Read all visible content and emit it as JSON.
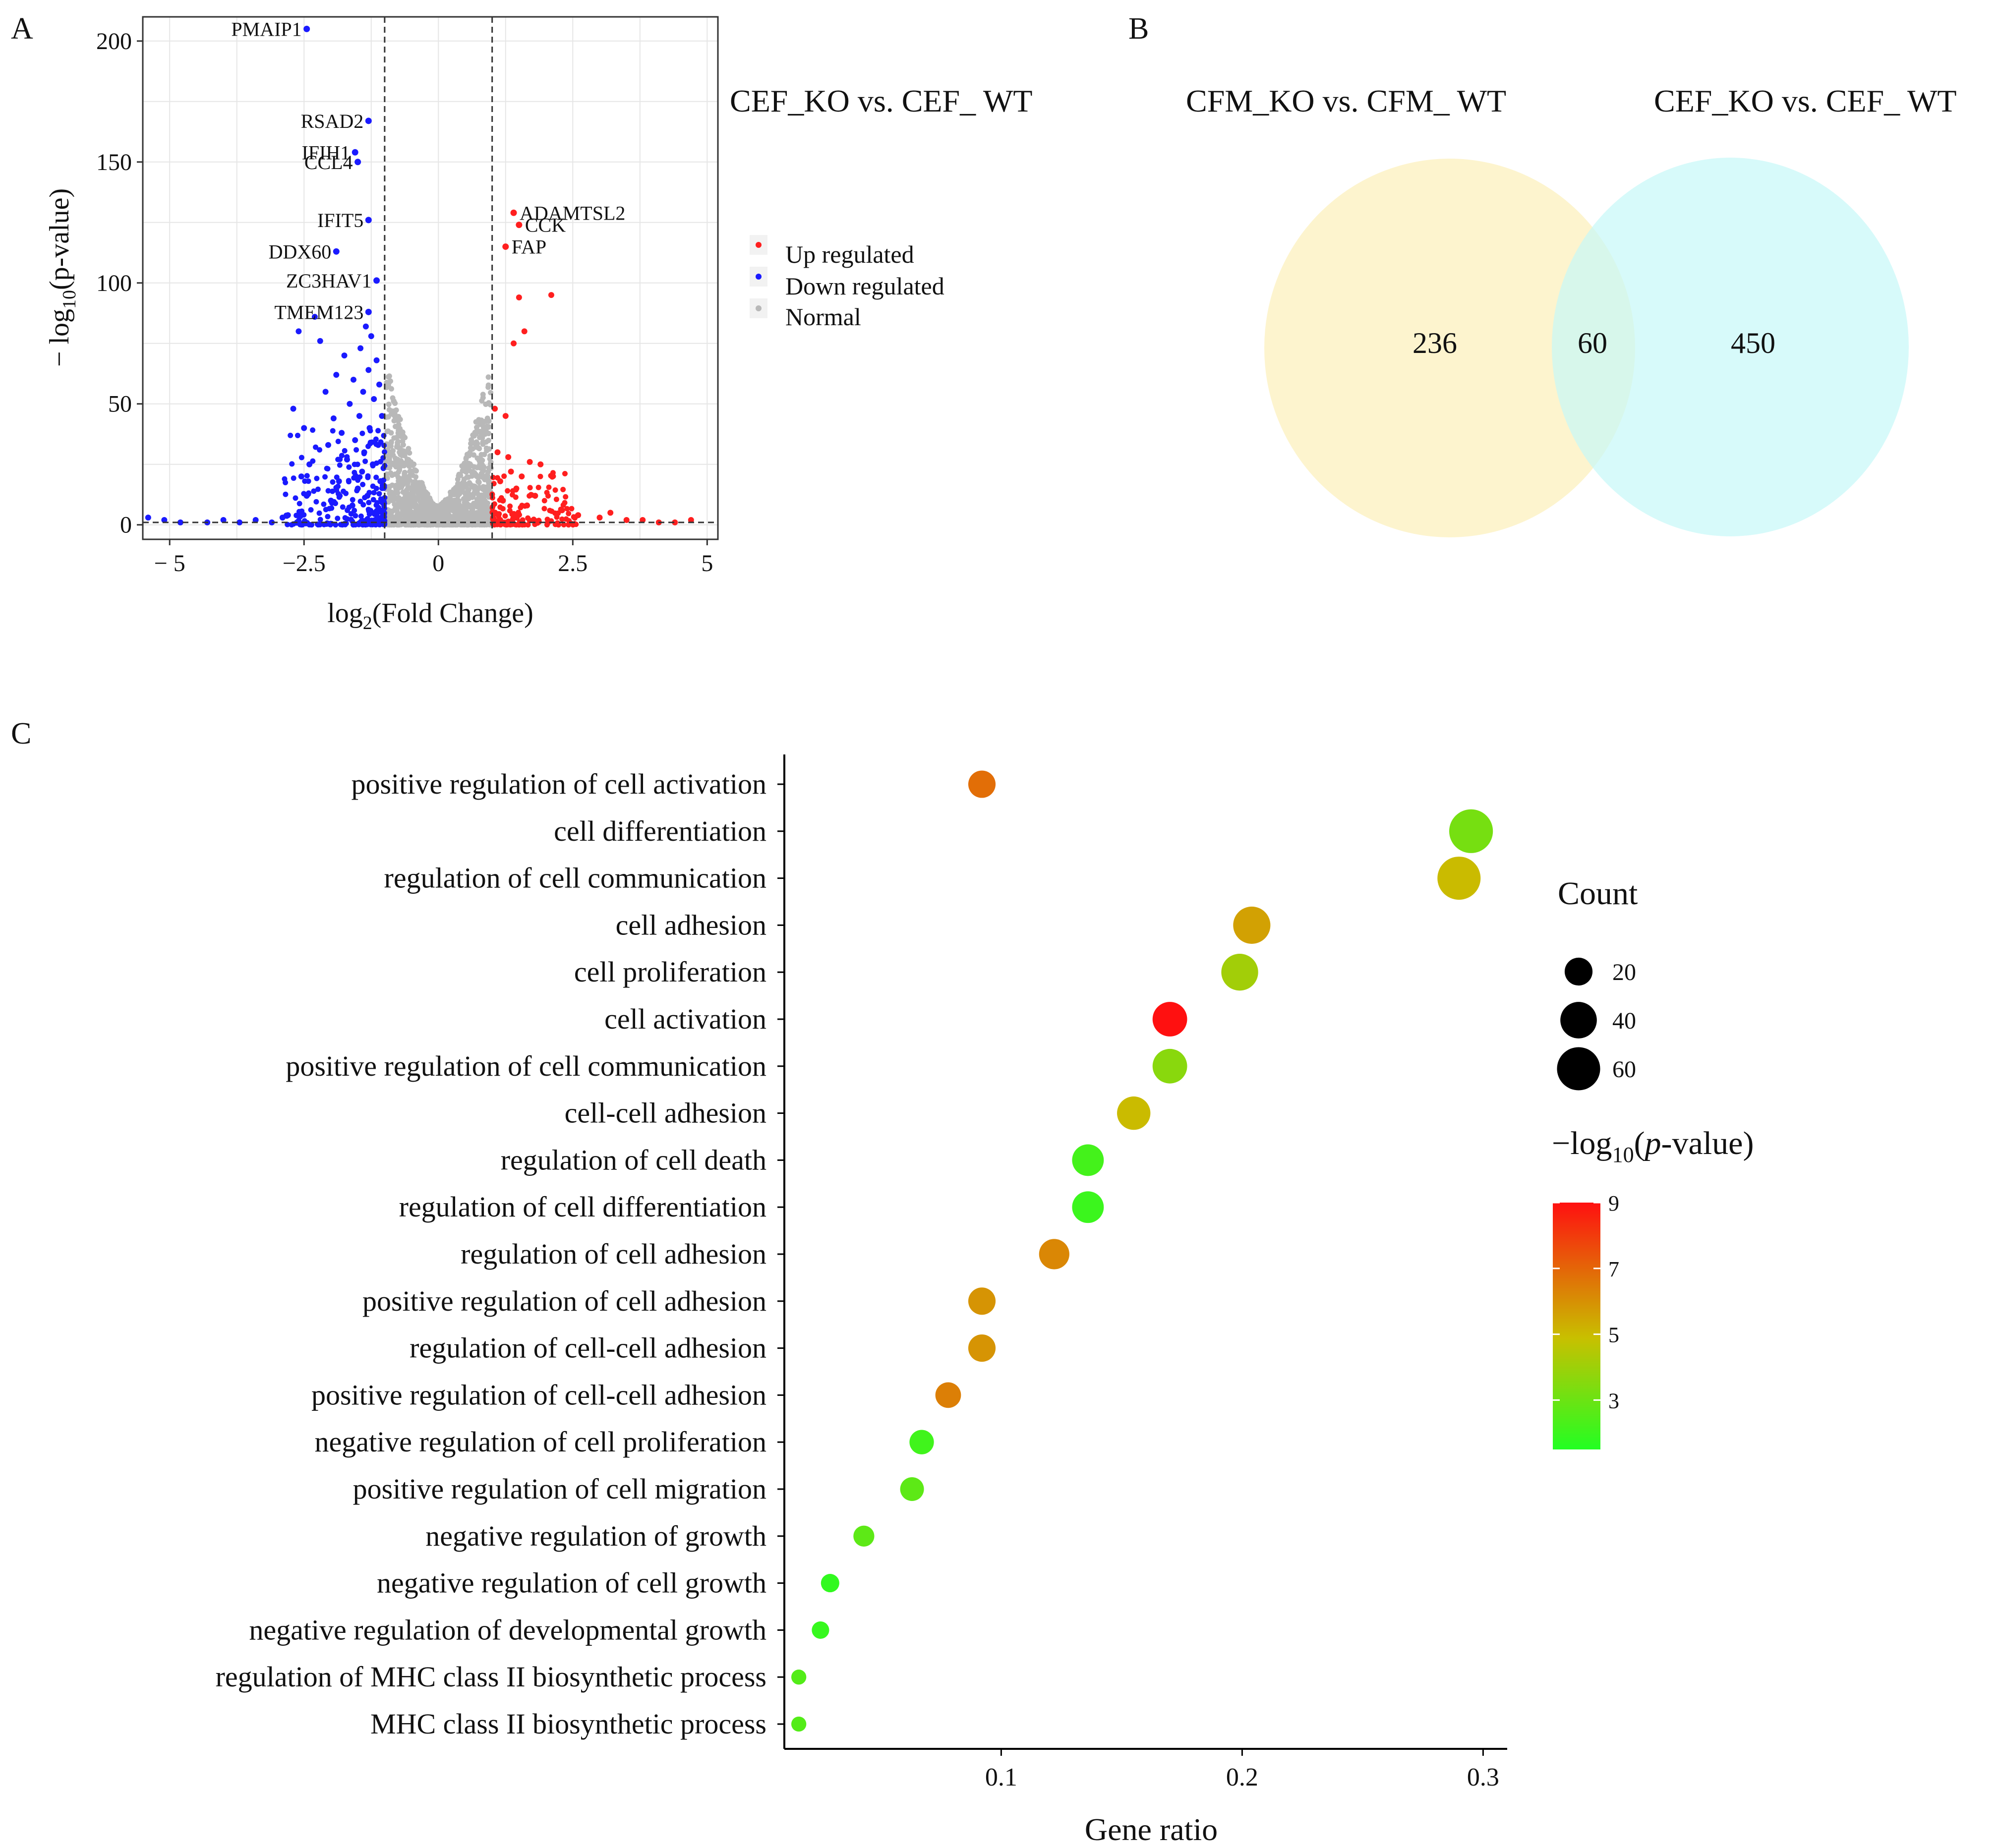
{
  "panel_labels": {
    "a": "A",
    "b": "B",
    "c": "C"
  },
  "colors": {
    "up": "#ff1f1f",
    "down": "#1a1aff",
    "normal": "#b8b8b8",
    "venn_left": "#fdf2c6",
    "venn_right": "#c6f8f8",
    "grid": "#e6e6e6",
    "panel_border": "#333333",
    "gradient_low": "#22ff22",
    "gradient_mid": "#c8c000",
    "gradient_high": "#ff1010"
  },
  "volcano": {
    "title": "CEF_KO vs. CEF_ WT",
    "xlabel_prefix": "log",
    "xlabel_sub": "2",
    "xlabel_suffix": "(Fold Change)",
    "ylabel_prefix": "− log",
    "ylabel_sub": "10",
    "ylabel_suffix": "(p-value)",
    "x_ticks": [
      {
        "value": -5,
        "label": "− 5"
      },
      {
        "value": -2.5,
        "label": "−2.5"
      },
      {
        "value": 0,
        "label": "0"
      },
      {
        "value": 2.5,
        "label": "2.5"
      },
      {
        "value": 5,
        "label": "5"
      }
    ],
    "y_ticks": [
      {
        "value": 0,
        "label": "0"
      },
      {
        "value": 50,
        "label": "50"
      },
      {
        "value": 100,
        "label": "100"
      },
      {
        "value": 150,
        "label": "150"
      },
      {
        "value": 200,
        "label": "200"
      }
    ]
  },
  "venn": {
    "left_title": "CFM_KO vs. CFM_ WT",
    "right_title": "CEF_KO vs. CEF_ WT",
    "left_only": "236",
    "overlap": "60",
    "right_only": "450"
  },
  "chart_data": [
    {
      "type": "scatter",
      "panel": "A",
      "title": "CEF_KO vs. CEF_ WT",
      "xlabel": "log2(Fold Change)",
      "ylabel": "− log10(p-value)",
      "xlim": [
        -5.5,
        5.2
      ],
      "ylim": [
        -6,
        210
      ],
      "thresholds": {
        "fold_change": [
          -1,
          1
        ],
        "p_value_line": 1
      },
      "legend": {
        "position": "right",
        "entries": [
          "Up regulated",
          "Down regulated",
          "Normal"
        ]
      },
      "labeled_points": [
        {
          "name": "PMAIP1",
          "x": -2.45,
          "y": 205,
          "group": "down"
        },
        {
          "name": "RSAD2",
          "x": -1.3,
          "y": 167,
          "group": "down"
        },
        {
          "name": "IFIH1",
          "x": -1.55,
          "y": 154,
          "group": "down"
        },
        {
          "name": "CCL4",
          "x": -1.5,
          "y": 150,
          "group": "down"
        },
        {
          "name": "IFIT5",
          "x": -1.3,
          "y": 126,
          "group": "down"
        },
        {
          "name": "DDX60",
          "x": -1.9,
          "y": 113,
          "group": "down"
        },
        {
          "name": "ZC3HAV1",
          "x": -1.15,
          "y": 101,
          "group": "down"
        },
        {
          "name": "TMEM123",
          "x": -1.3,
          "y": 88,
          "group": "down"
        },
        {
          "name": "ADAMTSL2",
          "x": 1.4,
          "y": 129,
          "group": "up"
        },
        {
          "name": "CCK",
          "x": 1.5,
          "y": 124,
          "group": "up"
        },
        {
          "name": "FAP",
          "x": 1.25,
          "y": 115,
          "group": "up"
        }
      ],
      "extra_points": {
        "down": [
          [
            -5.4,
            3
          ],
          [
            -5.1,
            2
          ],
          [
            -4.8,
            1
          ],
          [
            -4.3,
            1
          ],
          [
            -4.0,
            2
          ],
          [
            -3.7,
            1
          ],
          [
            -3.4,
            2
          ],
          [
            -3.1,
            1
          ],
          [
            -2.9,
            3
          ],
          [
            -2.8,
            4
          ],
          [
            -2.7,
            48
          ],
          [
            -2.6,
            80
          ],
          [
            -2.55,
            20
          ],
          [
            -2.5,
            40
          ],
          [
            -2.45,
            12
          ],
          [
            -2.4,
            25
          ],
          [
            -2.3,
            86
          ],
          [
            -2.2,
            76
          ],
          [
            -2.1,
            55
          ],
          [
            -2.05,
            33
          ],
          [
            -2.0,
            10
          ],
          [
            -1.95,
            44
          ],
          [
            -1.9,
            62
          ],
          [
            -1.85,
            18
          ],
          [
            -1.8,
            38
          ],
          [
            -1.75,
            70
          ],
          [
            -1.7,
            27
          ],
          [
            -1.65,
            50
          ],
          [
            -1.6,
            8
          ],
          [
            -1.58,
            60
          ],
          [
            -1.55,
            35
          ],
          [
            -1.5,
            15
          ],
          [
            -1.47,
            45
          ],
          [
            -1.45,
            73
          ],
          [
            -1.42,
            22
          ],
          [
            -1.4,
            55
          ],
          [
            -1.38,
            30
          ],
          [
            -1.35,
            82
          ],
          [
            -1.32,
            12
          ],
          [
            -1.3,
            64
          ],
          [
            -1.28,
            40
          ],
          [
            -1.25,
            78
          ],
          [
            -1.22,
            25
          ],
          [
            -1.2,
            52
          ],
          [
            -1.18,
            5
          ],
          [
            -1.15,
            68
          ],
          [
            -1.12,
            33
          ],
          [
            -1.1,
            58
          ],
          [
            -1.08,
            18
          ],
          [
            -1.05,
            45
          ],
          [
            -1.03,
            9
          ]
        ],
        "up": [
          [
            1.05,
            48
          ],
          [
            1.1,
            30
          ],
          [
            1.15,
            18
          ],
          [
            1.2,
            10
          ],
          [
            1.25,
            45
          ],
          [
            1.3,
            28
          ],
          [
            1.35,
            22
          ],
          [
            1.4,
            75
          ],
          [
            1.45,
            15
          ],
          [
            1.5,
            94
          ],
          [
            1.55,
            20
          ],
          [
            1.6,
            80
          ],
          [
            1.65,
            8
          ],
          [
            1.7,
            26
          ],
          [
            1.8,
            12
          ],
          [
            1.9,
            25
          ],
          [
            2.1,
            95
          ],
          [
            2.3,
            6
          ],
          [
            2.6,
            4
          ],
          [
            3.0,
            3
          ],
          [
            3.2,
            5
          ],
          [
            3.5,
            2
          ],
          [
            3.8,
            2
          ],
          [
            4.1,
            1
          ],
          [
            4.4,
            1
          ],
          [
            4.7,
            2
          ]
        ]
      }
    },
    {
      "type": "venn",
      "panel": "B",
      "sets": [
        {
          "name": "CFM_KO vs. CFM_ WT",
          "only": 236
        },
        {
          "name": "CEF_KO vs. CEF_ WT",
          "only": 450
        }
      ],
      "intersection": 60
    },
    {
      "type": "scatter",
      "subtype": "bubble",
      "panel": "C",
      "xlabel": "Gene ratio",
      "ylabel": "",
      "xlim": [
        0.01,
        0.31
      ],
      "x_ticks": [
        0.1,
        0.2,
        0.3
      ],
      "size_legend_title": "Count",
      "size_legend": [
        20,
        40,
        60
      ],
      "color_legend_title": "−log10(p-value)",
      "color_range": [
        1.5,
        9
      ],
      "color_ticks": [
        3,
        5,
        7,
        9
      ],
      "categories": [
        "positive regulation of cell activation",
        "cell differentiation",
        "regulation of cell communication",
        "cell adhesion",
        "cell proliferation",
        "cell activation",
        "positive regulation of cell communication",
        "cell-cell adhesion",
        "regulation of cell death",
        "regulation of cell differentiation",
        "regulation of cell adhesion",
        "positive regulation of cell adhesion",
        "regulation of cell-cell adhesion",
        "positive regulation of cell-cell adhesion",
        "negative regulation of cell proliferation",
        "positive regulation of cell migration",
        "negative regulation of growth",
        "negative regulation of cell growth",
        "negative regulation of developmental growth",
        "regulation of MHC class II biosynthetic process",
        "MHC class II biosynthetic process"
      ],
      "gene_ratio": [
        0.092,
        0.295,
        0.29,
        0.204,
        0.199,
        0.17,
        0.17,
        0.155,
        0.136,
        0.136,
        0.122,
        0.092,
        0.092,
        0.078,
        0.067,
        0.063,
        0.043,
        0.029,
        0.025,
        0.016,
        0.016
      ],
      "count": [
        19,
        62,
        60,
        42,
        41,
        35,
        35,
        32,
        28,
        28,
        25,
        19,
        19,
        16,
        14,
        13,
        9,
        6,
        5,
        3,
        3
      ],
      "neg_log10_p": [
        6.8,
        3.2,
        5.0,
        5.6,
        4.1,
        9.0,
        3.6,
        5.0,
        2.2,
        2.0,
        6.2,
        5.9,
        5.9,
        6.4,
        2.1,
        2.7,
        2.7,
        1.8,
        1.9,
        2.5,
        2.5
      ]
    }
  ]
}
